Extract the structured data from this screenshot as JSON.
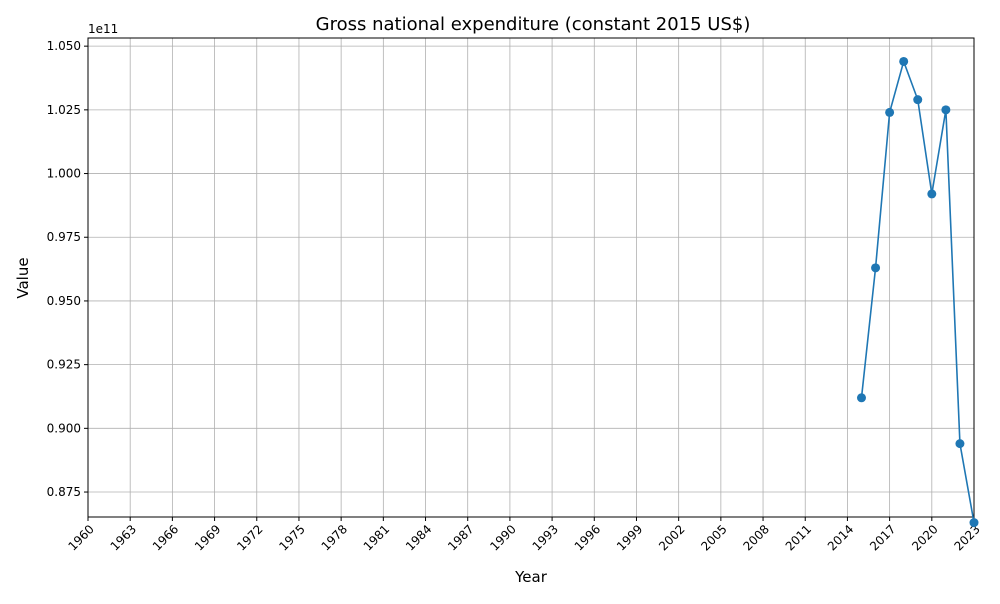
{
  "chart_data": {
    "type": "line",
    "title": "Gross national expenditure (constant 2015 US$)",
    "xlabel": "Year",
    "ylabel": "Value",
    "y_offset_label": "1e11",
    "xlim": [
      1960,
      2023
    ],
    "ylim": [
      0.8652,
      1.0532
    ],
    "x_ticks": [
      1960,
      1963,
      1966,
      1969,
      1972,
      1975,
      1978,
      1981,
      1984,
      1987,
      1990,
      1993,
      1996,
      1999,
      2002,
      2005,
      2008,
      2011,
      2014,
      2017,
      2020,
      2023
    ],
    "y_ticks": [
      0.875,
      0.9,
      0.925,
      0.95,
      0.975,
      1.0,
      1.025,
      1.05
    ],
    "y_tick_labels": [
      "0.875",
      "0.900",
      "0.925",
      "0.950",
      "0.975",
      "1.000",
      "1.025",
      "1.050"
    ],
    "grid": true,
    "series_color": "#1f77b4",
    "series": [
      {
        "x": [
          2015,
          2016,
          2017,
          2018,
          2019,
          2020,
          2021,
          2022,
          2023
        ],
        "values": [
          0.912,
          0.963,
          1.024,
          1.044,
          1.029,
          0.992,
          1.025,
          0.894,
          0.863
        ]
      }
    ]
  }
}
